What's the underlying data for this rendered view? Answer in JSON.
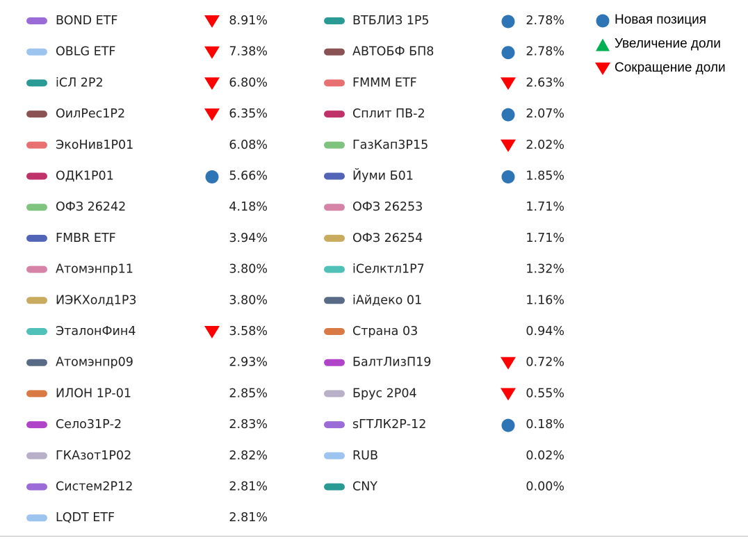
{
  "columns": [
    {
      "items": [
        {
          "name": "BOND ETF",
          "color": "#9b6bd8",
          "percent": "8.91%",
          "marker": "decrease"
        },
        {
          "name": "OBLG ETF",
          "color": "#9cc4ef",
          "percent": "7.38%",
          "marker": "decrease"
        },
        {
          "name": "iСЛ 2Р2",
          "color": "#2a9a94",
          "percent": "6.80%",
          "marker": "decrease"
        },
        {
          "name": "ОилРес1Р2",
          "color": "#8a5252",
          "percent": "6.35%",
          "marker": "decrease"
        },
        {
          "name": "ЭкоНив1Р01",
          "color": "#e87070",
          "percent": "6.08%"
        },
        {
          "name": "ОДК1Р01",
          "color": "#c0336a",
          "percent": "5.66%",
          "marker": "new"
        },
        {
          "name": "ОФЗ 26242",
          "color": "#7ec47e",
          "percent": "4.18%"
        },
        {
          "name": "FMBR ETF",
          "color": "#5264b5",
          "percent": "3.94%"
        },
        {
          "name": "Атомэнпр11",
          "color": "#d584a8",
          "percent": "3.80%"
        },
        {
          "name": "ИЭКХолд1Р3",
          "color": "#c8ab5e",
          "percent": "3.80%"
        },
        {
          "name": "ЭталонФин4",
          "color": "#4fc1b8",
          "percent": "3.58%",
          "marker": "decrease"
        },
        {
          "name": "Атомэнпр09",
          "color": "#586a85",
          "percent": "2.93%"
        },
        {
          "name": "ИЛОН 1Р-01",
          "color": "#d97a45",
          "percent": "2.85%"
        },
        {
          "name": "Село31Р-2",
          "color": "#b044c8",
          "percent": "2.83%"
        },
        {
          "name": "ГКАзот1Р02",
          "color": "#b8b0c8",
          "percent": "2.82%"
        },
        {
          "name": "Систем2Р12",
          "color": "#9b6bd8",
          "percent": "2.81%"
        },
        {
          "name": "LQDT ETF",
          "color": "#9cc4ef",
          "percent": "2.81%"
        }
      ]
    },
    {
      "items": [
        {
          "name": "ВТБЛИЗ 1Р5",
          "color": "#2a9a94",
          "percent": "2.78%",
          "marker": "new"
        },
        {
          "name": "АВТОБФ БП8",
          "color": "#8a5252",
          "percent": "2.78%",
          "marker": "new"
        },
        {
          "name": "FMMM ETF",
          "color": "#e87070",
          "percent": "2.63%",
          "marker": "decrease"
        },
        {
          "name": "Сплит ПВ-2",
          "color": "#c0336a",
          "percent": "2.07%",
          "marker": "new"
        },
        {
          "name": "ГазКап3Р15",
          "color": "#7ec47e",
          "percent": "2.02%",
          "marker": "decrease"
        },
        {
          "name": "Йуми Б01",
          "color": "#5264b5",
          "percent": "1.85%",
          "marker": "new"
        },
        {
          "name": "ОФЗ 26253",
          "color": "#d584a8",
          "percent": "1.71%"
        },
        {
          "name": "ОФЗ 26254",
          "color": "#c8ab5e",
          "percent": "1.71%"
        },
        {
          "name": "iСелктл1Р7",
          "color": "#4fc1b8",
          "percent": "1.32%"
        },
        {
          "name": "iАйдеко 01",
          "color": "#586a85",
          "percent": "1.16%"
        },
        {
          "name": "Страна 03",
          "color": "#d97a45",
          "percent": "0.94%"
        },
        {
          "name": "БалтЛизП19",
          "color": "#b044c8",
          "percent": "0.72%",
          "marker": "decrease"
        },
        {
          "name": "Брус 2Р04",
          "color": "#b8b0c8",
          "percent": "0.55%",
          "marker": "decrease"
        },
        {
          "name": "sГТЛК2Р-12",
          "color": "#9b6bd8",
          "percent": "0.18%",
          "marker": "new"
        },
        {
          "name": "RUB",
          "color": "#9cc4ef",
          "percent": "0.02%"
        },
        {
          "name": "CNY",
          "color": "#2a9a94",
          "percent": "0.00%"
        }
      ]
    }
  ],
  "legend": {
    "items": [
      {
        "symbol": "new",
        "label": "Новая позиция"
      },
      {
        "symbol": "increase",
        "label": "Увеличение доли"
      },
      {
        "symbol": "decrease",
        "label": "Сокращение доли"
      }
    ]
  }
}
